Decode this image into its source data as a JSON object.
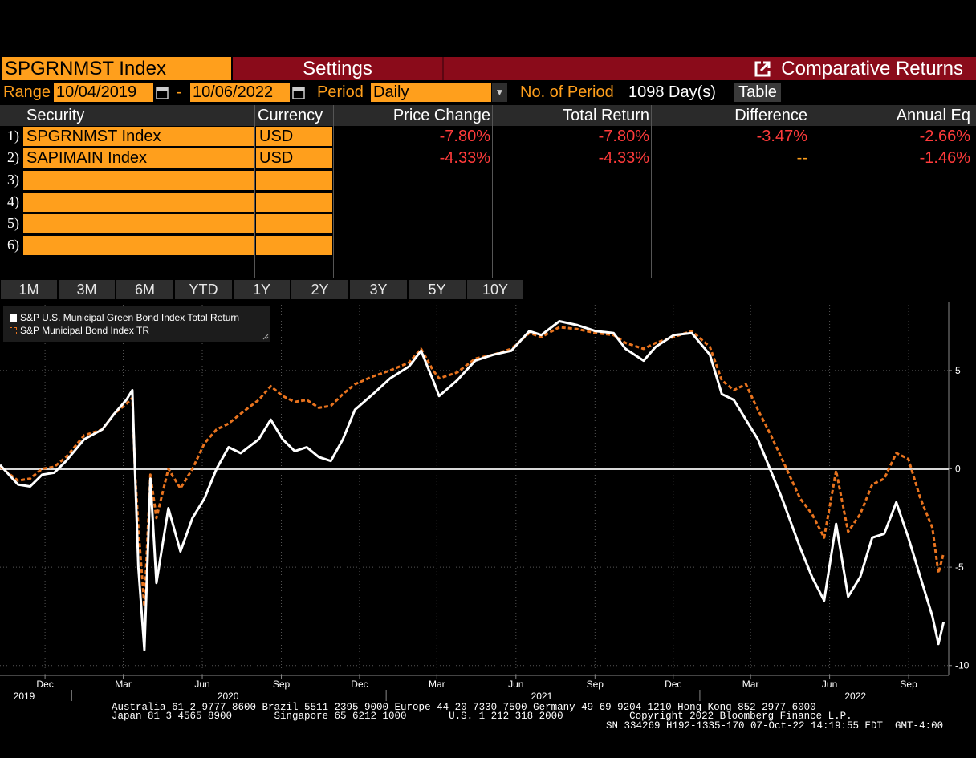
{
  "header": {
    "ticker": "SPGRNMST Index",
    "settings_label": "Settings",
    "title": "Comparative Returns"
  },
  "controls": {
    "range_label": "Range",
    "start_date": "10/04/2019",
    "dash": "-",
    "end_date": "10/06/2022",
    "period_label": "Period",
    "period_value": "Daily",
    "num_periods_label": "No. of Period",
    "num_periods_value": "1098 Day(s)",
    "table_button": "Table"
  },
  "table": {
    "columns": [
      "Security",
      "Currency",
      "Price Change",
      "Total Return",
      "Difference",
      "Annual Eq"
    ],
    "rows": [
      {
        "num": "1)",
        "security": "SPGRNMST Index",
        "currency": "USD",
        "price_change": "-7.80%",
        "total_return": "-7.80%",
        "difference": "-3.47%",
        "annual_eq": "-2.66%"
      },
      {
        "num": "2)",
        "security": "SAPIMAIN Index",
        "currency": "USD",
        "price_change": "-4.33%",
        "total_return": "-4.33%",
        "difference": "--",
        "annual_eq": "-1.46%"
      },
      {
        "num": "3)",
        "security": "",
        "currency": ""
      },
      {
        "num": "4)",
        "security": "",
        "currency": ""
      },
      {
        "num": "5)",
        "security": "",
        "currency": ""
      },
      {
        "num": "6)",
        "security": "",
        "currency": ""
      }
    ]
  },
  "period_tabs": [
    "1M",
    "3M",
    "6M",
    "YTD",
    "1Y",
    "2Y",
    "3Y",
    "5Y",
    "10Y"
  ],
  "legend": {
    "series1": "S&P U.S. Municipal Green Bond Index Total Return",
    "series2": "S&P Municipal Bond Index TR"
  },
  "colors": {
    "bloomberg_orange": "#ff9f1c",
    "header_red": "#8a0b1a",
    "negative_red": "#ff3b3b",
    "series1": "#ffffff",
    "series2": "#e8731e"
  },
  "chart_data": {
    "type": "line",
    "ylim": [
      -10.5,
      8.5
    ],
    "yticks": [
      5,
      0,
      -5,
      -10
    ],
    "ytick_labels": [
      "5",
      "0",
      "-5",
      "-10"
    ],
    "x_month_labels": [
      "Dec",
      "Mar",
      "Jun",
      "Sep",
      "Dec",
      "Mar",
      "Jun",
      "Sep",
      "Dec",
      "Mar",
      "Jun",
      "Sep"
    ],
    "x_year_labels": [
      "2019",
      "2020",
      "2021",
      "2022"
    ],
    "xlim": [
      "2019-10-04",
      "2022-10-12"
    ],
    "zero_line": true,
    "legend_position": "top-left",
    "series": [
      {
        "name": "S&P U.S. Municipal Green Bond Index Total Return",
        "color": "#ffffff",
        "style": "solid",
        "points": [
          [
            "2019-10-04",
            0.2
          ],
          [
            "2019-10-25",
            -0.8
          ],
          [
            "2019-11-08",
            -0.9
          ],
          [
            "2019-11-22",
            -0.3
          ],
          [
            "2019-12-06",
            -0.2
          ],
          [
            "2019-12-20",
            0.4
          ],
          [
            "2020-01-10",
            1.5
          ],
          [
            "2020-01-31",
            2.0
          ],
          [
            "2020-02-14",
            2.8
          ],
          [
            "2020-02-28",
            3.5
          ],
          [
            "2020-03-06",
            4.0
          ],
          [
            "2020-03-09",
            0.0
          ],
          [
            "2020-03-13",
            -5.0
          ],
          [
            "2020-03-20",
            -9.2
          ],
          [
            "2020-03-27",
            -0.5
          ],
          [
            "2020-04-03",
            -5.8
          ],
          [
            "2020-04-17",
            -2.0
          ],
          [
            "2020-05-01",
            -4.2
          ],
          [
            "2020-05-15",
            -2.5
          ],
          [
            "2020-05-29",
            -1.5
          ],
          [
            "2020-06-12",
            0.0
          ],
          [
            "2020-06-26",
            1.1
          ],
          [
            "2020-07-10",
            0.8
          ],
          [
            "2020-07-31",
            1.5
          ],
          [
            "2020-08-14",
            2.5
          ],
          [
            "2020-08-28",
            1.5
          ],
          [
            "2020-09-11",
            0.9
          ],
          [
            "2020-09-25",
            1.1
          ],
          [
            "2020-10-09",
            0.6
          ],
          [
            "2020-10-23",
            0.4
          ],
          [
            "2020-11-06",
            1.5
          ],
          [
            "2020-11-20",
            3.0
          ],
          [
            "2020-12-11",
            3.8
          ],
          [
            "2020-12-31",
            4.6
          ],
          [
            "2021-01-22",
            5.2
          ],
          [
            "2021-02-05",
            6.0
          ],
          [
            "2021-02-19",
            4.5
          ],
          [
            "2021-02-26",
            3.7
          ],
          [
            "2021-03-19",
            4.5
          ],
          [
            "2021-04-09",
            5.5
          ],
          [
            "2021-04-30",
            5.8
          ],
          [
            "2021-05-21",
            6.0
          ],
          [
            "2021-06-11",
            7.0
          ],
          [
            "2021-06-25",
            6.8
          ],
          [
            "2021-07-16",
            7.5
          ],
          [
            "2021-08-06",
            7.3
          ],
          [
            "2021-08-27",
            7.0
          ],
          [
            "2021-09-17",
            6.9
          ],
          [
            "2021-10-01",
            6.1
          ],
          [
            "2021-10-22",
            5.5
          ],
          [
            "2021-11-05",
            6.2
          ],
          [
            "2021-11-26",
            6.8
          ],
          [
            "2021-12-17",
            6.9
          ],
          [
            "2022-01-07",
            5.8
          ],
          [
            "2022-01-21",
            3.8
          ],
          [
            "2022-02-04",
            3.5
          ],
          [
            "2022-02-18",
            2.5
          ],
          [
            "2022-03-04",
            1.5
          ],
          [
            "2022-03-18",
            0.0
          ],
          [
            "2022-04-01",
            -1.5
          ],
          [
            "2022-04-22",
            -4.0
          ],
          [
            "2022-05-06",
            -5.5
          ],
          [
            "2022-05-20",
            -6.7
          ],
          [
            "2022-06-03",
            -2.8
          ],
          [
            "2022-06-17",
            -6.5
          ],
          [
            "2022-07-01",
            -5.5
          ],
          [
            "2022-07-15",
            -3.5
          ],
          [
            "2022-07-29",
            -3.3
          ],
          [
            "2022-08-12",
            -1.7
          ],
          [
            "2022-08-26",
            -3.5
          ],
          [
            "2022-09-09",
            -5.5
          ],
          [
            "2022-09-23",
            -7.5
          ],
          [
            "2022-09-30",
            -8.9
          ],
          [
            "2022-10-06",
            -7.8
          ]
        ]
      },
      {
        "name": "S&P Municipal Bond Index TR",
        "color": "#e8731e",
        "style": "dashed",
        "points": [
          [
            "2019-10-04",
            0.1
          ],
          [
            "2019-10-25",
            -0.6
          ],
          [
            "2019-11-08",
            -0.5
          ],
          [
            "2019-11-22",
            0.0
          ],
          [
            "2019-12-06",
            0.1
          ],
          [
            "2019-12-20",
            0.6
          ],
          [
            "2020-01-10",
            1.7
          ],
          [
            "2020-01-31",
            2.0
          ],
          [
            "2020-02-14",
            2.8
          ],
          [
            "2020-02-28",
            3.3
          ],
          [
            "2020-03-06",
            3.6
          ],
          [
            "2020-03-09",
            0.0
          ],
          [
            "2020-03-13",
            -3.0
          ],
          [
            "2020-03-20",
            -7.0
          ],
          [
            "2020-03-27",
            -0.3
          ],
          [
            "2020-04-03",
            -2.5
          ],
          [
            "2020-04-17",
            0.0
          ],
          [
            "2020-05-01",
            -1.0
          ],
          [
            "2020-05-15",
            0.0
          ],
          [
            "2020-05-29",
            1.3
          ],
          [
            "2020-06-12",
            2.0
          ],
          [
            "2020-06-26",
            2.3
          ],
          [
            "2020-07-10",
            2.8
          ],
          [
            "2020-07-31",
            3.5
          ],
          [
            "2020-08-14",
            4.2
          ],
          [
            "2020-08-28",
            3.7
          ],
          [
            "2020-09-11",
            3.4
          ],
          [
            "2020-09-25",
            3.5
          ],
          [
            "2020-10-09",
            3.1
          ],
          [
            "2020-10-23",
            3.2
          ],
          [
            "2020-11-06",
            3.8
          ],
          [
            "2020-11-20",
            4.3
          ],
          [
            "2020-12-11",
            4.7
          ],
          [
            "2020-12-31",
            5.0
          ],
          [
            "2021-01-22",
            5.4
          ],
          [
            "2021-02-05",
            6.1
          ],
          [
            "2021-02-19",
            5.0
          ],
          [
            "2021-02-26",
            4.6
          ],
          [
            "2021-03-19",
            4.9
          ],
          [
            "2021-04-09",
            5.6
          ],
          [
            "2021-04-30",
            5.8
          ],
          [
            "2021-05-21",
            6.1
          ],
          [
            "2021-06-11",
            6.9
          ],
          [
            "2021-06-25",
            6.7
          ],
          [
            "2021-07-16",
            7.2
          ],
          [
            "2021-08-06",
            7.1
          ],
          [
            "2021-08-27",
            6.9
          ],
          [
            "2021-09-17",
            6.8
          ],
          [
            "2021-10-01",
            6.4
          ],
          [
            "2021-10-22",
            6.1
          ],
          [
            "2021-11-05",
            6.4
          ],
          [
            "2021-11-26",
            6.7
          ],
          [
            "2021-12-17",
            7.0
          ],
          [
            "2022-01-07",
            6.2
          ],
          [
            "2022-01-21",
            4.5
          ],
          [
            "2022-02-04",
            4.0
          ],
          [
            "2022-02-18",
            4.3
          ],
          [
            "2022-03-04",
            3.0
          ],
          [
            "2022-03-18",
            1.8
          ],
          [
            "2022-04-01",
            0.5
          ],
          [
            "2022-04-22",
            -1.5
          ],
          [
            "2022-05-06",
            -2.3
          ],
          [
            "2022-05-20",
            -3.5
          ],
          [
            "2022-06-03",
            -0.1
          ],
          [
            "2022-06-17",
            -3.2
          ],
          [
            "2022-07-01",
            -2.3
          ],
          [
            "2022-07-15",
            -0.8
          ],
          [
            "2022-07-29",
            -0.5
          ],
          [
            "2022-08-12",
            0.8
          ],
          [
            "2022-08-26",
            0.5
          ],
          [
            "2022-09-09",
            -1.5
          ],
          [
            "2022-09-23",
            -3.0
          ],
          [
            "2022-09-30",
            -5.3
          ],
          [
            "2022-10-06",
            -4.3
          ]
        ]
      }
    ]
  },
  "footer": {
    "line1": "Australia 61 2 9777 8600 Brazil 5511 2395 9000 Europe 44 20 7330 7500 Germany 49 69 9204 1210 Hong Kong 852 2977 6000",
    "line2": "Japan 81 3 4565 8900       Singapore 65 6212 1000       U.S. 1 212 318 2000           Copyright 2022 Bloomberg Finance L.P.",
    "line3": "SN 334269 H192-1335-170 07-Oct-22 14:19:55 EDT  GMT-4:00"
  }
}
